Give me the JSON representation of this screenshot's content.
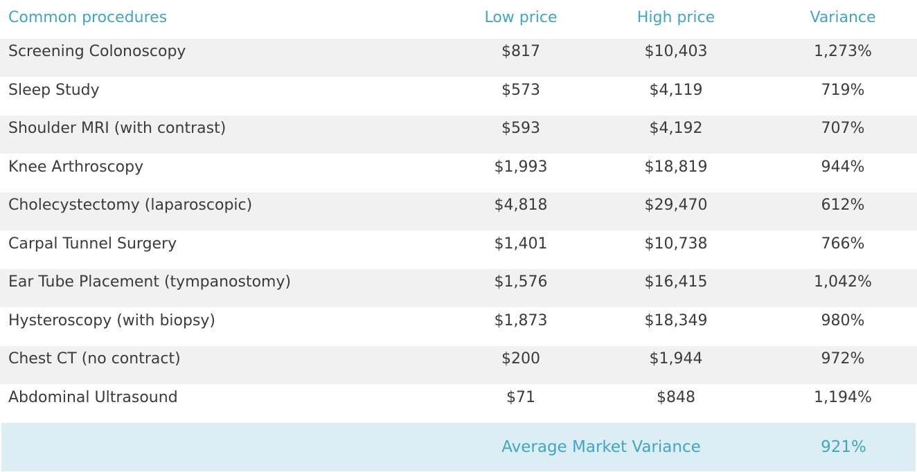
{
  "chart_data": {
    "type": "table",
    "columns": [
      "Common procedures",
      "Low price",
      "High price",
      "Variance"
    ],
    "rows": [
      {
        "procedure": "Screening Colonoscopy",
        "low": "$817",
        "high": "$10,403",
        "variance": "1,273%"
      },
      {
        "procedure": "Sleep Study",
        "low": "$573",
        "high": "$4,119",
        "variance": "719%"
      },
      {
        "procedure": "Shoulder MRI (with contrast)",
        "low": "$593",
        "high": "$4,192",
        "variance": "707%"
      },
      {
        "procedure": "Knee Arthroscopy",
        "low": "$1,993",
        "high": "$18,819",
        "variance": "944%"
      },
      {
        "procedure": "Cholecystectomy (laparoscopic)",
        "low": "$4,818",
        "high": "$29,470",
        "variance": "612%"
      },
      {
        "procedure": "Carpal Tunnel Surgery",
        "low": "$1,401",
        "high": "$10,738",
        "variance": "766%"
      },
      {
        "procedure": "Ear Tube Placement (tympanostomy)",
        "low": "$1,576",
        "high": "$16,415",
        "variance": "1,042%"
      },
      {
        "procedure": "Hysteroscopy (with biopsy)",
        "low": "$1,873",
        "high": "$18,349",
        "variance": "980%"
      },
      {
        "procedure": "Chest CT (no contract)",
        "low": "$200",
        "high": "$1,944",
        "variance": "972%"
      },
      {
        "procedure": "Abdominal Ultrasound",
        "low": "$71",
        "high": "$848",
        "variance": "1,194%"
      }
    ],
    "footer": {
      "label": "Average Market Variance",
      "value": "921%"
    }
  },
  "colors": {
    "header_text": "#3fa6c4",
    "body_text": "#3b3b3b",
    "stripe": "#f1f1f1",
    "footer_bg": "#dcedf3"
  }
}
